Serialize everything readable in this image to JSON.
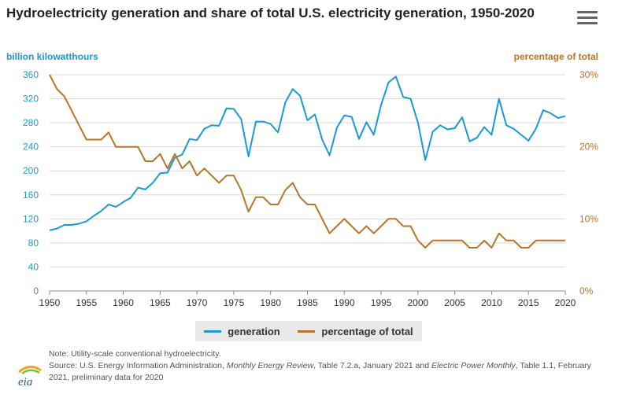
{
  "header": {
    "title": "Hydroelectricity generation and share of total U.S. electricity generation, 1950-2020",
    "menu_icon": "hamburger-menu-icon"
  },
  "logo_text": "eia",
  "colors": {
    "generation": "#1a9ad6",
    "percentage": "#b8752a",
    "grid": "#d9d9d9"
  },
  "chart_data": {
    "type": "line",
    "title": "Hydroelectricity generation and share of total U.S. electricity generation, 1950-2020",
    "ylabel_left": "billion kilowatthours",
    "ylabel_right": "percentage of total",
    "x_ticks": [
      1950,
      1955,
      1960,
      1965,
      1970,
      1975,
      1980,
      1985,
      1990,
      1995,
      2000,
      2005,
      2010,
      2015,
      2020
    ],
    "y_left_ticks": [
      "0",
      "40",
      "80",
      "120",
      "160",
      "200",
      "240",
      "280",
      "320",
      "360"
    ],
    "y_right_ticks": [
      "0%",
      "10%",
      "20%",
      "30%"
    ],
    "xlim": [
      1950,
      2020
    ],
    "ylim_left": [
      0,
      360
    ],
    "ylim_right": [
      0,
      30
    ],
    "grid": true,
    "legend_position": "bottom",
    "x": [
      1950,
      1951,
      1952,
      1953,
      1954,
      1955,
      1956,
      1957,
      1958,
      1959,
      1960,
      1961,
      1962,
      1963,
      1964,
      1965,
      1966,
      1967,
      1968,
      1969,
      1970,
      1971,
      1972,
      1973,
      1974,
      1975,
      1976,
      1977,
      1978,
      1979,
      1980,
      1981,
      1982,
      1983,
      1984,
      1985,
      1986,
      1987,
      1988,
      1989,
      1990,
      1991,
      1992,
      1993,
      1994,
      1995,
      1996,
      1997,
      1998,
      1999,
      2000,
      2001,
      2002,
      2003,
      2004,
      2005,
      2006,
      2007,
      2008,
      2009,
      2010,
      2011,
      2012,
      2013,
      2014,
      2015,
      2016,
      2017,
      2018,
      2019,
      2020
    ],
    "series": [
      {
        "name": "generation",
        "axis": "left",
        "values": [
          101,
          104,
          110,
          110,
          112,
          116,
          125,
          133,
          144,
          140,
          148,
          155,
          172,
          169,
          180,
          196,
          197,
          222,
          227,
          253,
          251,
          270,
          276,
          275,
          304,
          303,
          286,
          224,
          282,
          282,
          278,
          264,
          314,
          336,
          325,
          284,
          294,
          252,
          226,
          272,
          292,
          290,
          253,
          281,
          260,
          310,
          347,
          357,
          323,
          320,
          280,
          218,
          265,
          276,
          269,
          271,
          289,
          249,
          255,
          273,
          260,
          320,
          276,
          270,
          260,
          250,
          270,
          301,
          296,
          288,
          291
        ]
      },
      {
        "name": "percentage of total",
        "axis": "right",
        "values": [
          30,
          28,
          27,
          25,
          23,
          21,
          21,
          21,
          22,
          20,
          20,
          20,
          20,
          18,
          18,
          19,
          17,
          19,
          17,
          18,
          16,
          17,
          16,
          15,
          16,
          16,
          14,
          11,
          13,
          13,
          12,
          12,
          14,
          15,
          13,
          12,
          12,
          10,
          8,
          9,
          10,
          9,
          8,
          9,
          8,
          9,
          10,
          10,
          9,
          9,
          7,
          6,
          7,
          7,
          7,
          7,
          7,
          6,
          6,
          7,
          6,
          8,
          7,
          7,
          6,
          6,
          7,
          7,
          7,
          7,
          7
        ]
      }
    ]
  },
  "legend": {
    "generation": "generation",
    "percentage": "percentage of total"
  },
  "footnote": {
    "note": "Note: Utility-scale conventional hydroelectricity.",
    "source_prefix": "Source: U.S. Energy Information Administration, ",
    "source_pub1": "Monthly Energy Review",
    "source_mid": ", Table 7.2.a, January 2021 and ",
    "source_pub2": "Electric Power Monthly",
    "source_suffix": ", Table 1.1, February 2021, preliminary data for 2020"
  }
}
